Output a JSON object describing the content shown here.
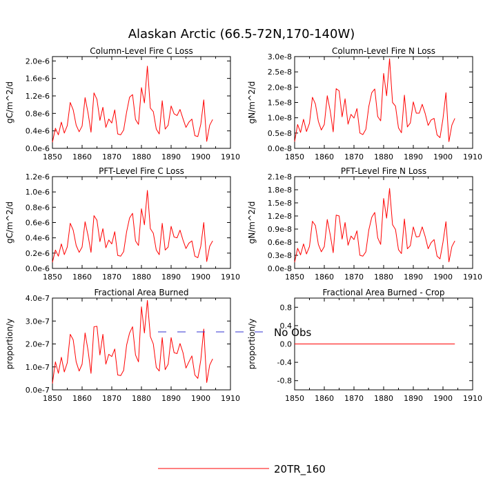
{
  "figure_title": "Alaskan Arctic (66.5-72N,170-140W)",
  "legend": [
    {
      "label": "No Obs",
      "color": "#3030d0",
      "dashed": true
    },
    {
      "label": "20TR_160",
      "color": "#ff0000",
      "dashed": false
    }
  ],
  "chart_data": [
    {
      "type": "line",
      "title": "Column-Level Fire C Loss",
      "xlabel": "",
      "ylabel": "gC/m^2/d",
      "xlim": [
        1850,
        1910
      ],
      "ylim": [
        0.0,
        2.1e-06
      ],
      "xticks": [
        1850,
        1860,
        1870,
        1880,
        1890,
        1900,
        1910
      ],
      "xtick_labels": [
        "1850",
        "1860",
        "1870",
        "1880",
        "1890",
        "1900",
        "1910"
      ],
      "yticks": [
        0.0,
        4e-07,
        8e-07,
        1.2e-06,
        1.6e-06,
        2e-06
      ],
      "ytick_labels": [
        "0.0e-6",
        "0.4e-6",
        "0.8e-6",
        "1.2e-6",
        "1.6e-6",
        "2.0e-6"
      ],
      "x": [
        1850,
        1851,
        1852,
        1853,
        1854,
        1855,
        1856,
        1857,
        1858,
        1859,
        1860,
        1861,
        1862,
        1863,
        1864,
        1865,
        1866,
        1867,
        1868,
        1869,
        1870,
        1871,
        1872,
        1873,
        1874,
        1875,
        1876,
        1877,
        1878,
        1879,
        1880,
        1881,
        1882,
        1883,
        1884,
        1885,
        1886,
        1887,
        1888,
        1889,
        1890,
        1891,
        1892,
        1893,
        1894,
        1895,
        1896,
        1897,
        1898,
        1899,
        1900,
        1901,
        1902,
        1903,
        1904
      ],
      "series": [
        {
          "name": "20TR_160",
          "color": "#ff0000",
          "values": [
            0.14,
            0.46,
            0.31,
            0.6,
            0.35,
            0.52,
            1.05,
            0.88,
            0.53,
            0.38,
            0.51,
            1.16,
            0.81,
            0.37,
            1.27,
            1.12,
            0.64,
            0.94,
            0.48,
            0.67,
            0.58,
            0.88,
            0.33,
            0.31,
            0.42,
            0.83,
            1.17,
            1.23,
            0.66,
            0.55,
            1.39,
            1.04,
            1.88,
            0.92,
            0.84,
            0.44,
            0.33,
            1.09,
            0.44,
            0.53,
            0.97,
            0.79,
            0.75,
            0.89,
            0.68,
            0.48,
            0.6,
            0.67,
            0.29,
            0.27,
            0.55,
            1.11,
            0.16,
            0.53,
            0.66
          ],
          "scale": 1e-06
        }
      ]
    },
    {
      "type": "line",
      "title": "Column-Level Fire N Loss",
      "xlabel": "",
      "ylabel": "gN/m^2/d",
      "xlim": [
        1850,
        1910
      ],
      "ylim": [
        0.0,
        3e-08
      ],
      "xticks": [
        1850,
        1860,
        1870,
        1880,
        1890,
        1900,
        1910
      ],
      "xtick_labels": [
        "1850",
        "1860",
        "1870",
        "1880",
        "1890",
        "1900",
        "1910"
      ],
      "yticks": [
        0.0,
        5e-09,
        1e-08,
        1.5e-08,
        2e-08,
        2.5e-08,
        3e-08
      ],
      "ytick_labels": [
        "0.0e-8",
        "0.5e-8",
        "1.0e-8",
        "1.5e-8",
        "2.0e-8",
        "2.5e-8",
        "3.0e-8"
      ],
      "x": [
        1850,
        1851,
        1852,
        1853,
        1854,
        1855,
        1856,
        1857,
        1858,
        1859,
        1860,
        1861,
        1862,
        1863,
        1864,
        1865,
        1866,
        1867,
        1868,
        1869,
        1870,
        1871,
        1872,
        1873,
        1874,
        1875,
        1876,
        1877,
        1878,
        1879,
        1880,
        1881,
        1882,
        1883,
        1884,
        1885,
        1886,
        1887,
        1888,
        1889,
        1890,
        1891,
        1892,
        1893,
        1894,
        1895,
        1896,
        1897,
        1898,
        1899,
        1900,
        1901,
        1902,
        1903,
        1904
      ],
      "series": [
        {
          "name": "20TR_160",
          "color": "#ff0000",
          "values": [
            0.22,
            0.78,
            0.52,
            0.95,
            0.55,
            0.82,
            1.67,
            1.45,
            0.88,
            0.6,
            0.78,
            1.72,
            1.22,
            0.54,
            1.95,
            1.88,
            1.03,
            1.62,
            0.79,
            1.11,
            0.99,
            1.3,
            0.5,
            0.45,
            0.62,
            1.37,
            1.82,
            1.94,
            1.04,
            0.9,
            2.45,
            1.72,
            2.93,
            1.5,
            1.38,
            0.67,
            0.51,
            1.74,
            0.7,
            0.83,
            1.52,
            1.15,
            1.15,
            1.44,
            1.14,
            0.75,
            0.93,
            0.98,
            0.44,
            0.35,
            0.97,
            1.82,
            0.22,
            0.76,
            0.98
          ],
          "scale": 1e-08
        }
      ]
    },
    {
      "type": "line",
      "title": "PFT-Level Fire C Loss",
      "xlabel": "",
      "ylabel": "gC/m^2/d",
      "xlim": [
        1850,
        1910
      ],
      "ylim": [
        0.0,
        1.2e-06
      ],
      "xticks": [
        1850,
        1860,
        1870,
        1880,
        1890,
        1900,
        1910
      ],
      "xtick_labels": [
        "1850",
        "1860",
        "1870",
        "1880",
        "1890",
        "1900",
        "1910"
      ],
      "yticks": [
        0.0,
        2e-07,
        4e-07,
        6e-07,
        8e-07,
        1e-06,
        1.2e-06
      ],
      "ytick_labels": [
        "0.0e-6",
        "0.2e-6",
        "0.4e-6",
        "0.6e-6",
        "0.8e-6",
        "1.0e-6",
        "1.2e-6"
      ],
      "x": [
        1850,
        1851,
        1852,
        1853,
        1854,
        1855,
        1856,
        1857,
        1858,
        1859,
        1860,
        1861,
        1862,
        1863,
        1864,
        1865,
        1866,
        1867,
        1868,
        1869,
        1870,
        1871,
        1872,
        1873,
        1874,
        1875,
        1876,
        1877,
        1878,
        1879,
        1880,
        1881,
        1882,
        1883,
        1884,
        1885,
        1886,
        1887,
        1888,
        1889,
        1890,
        1891,
        1892,
        1893,
        1894,
        1895,
        1896,
        1897,
        1898,
        1899,
        1900,
        1901,
        1902,
        1903,
        1904
      ],
      "series": [
        {
          "name": "20TR_160",
          "color": "#ff0000",
          "values": [
            0.08,
            0.24,
            0.16,
            0.32,
            0.18,
            0.28,
            0.59,
            0.5,
            0.3,
            0.21,
            0.28,
            0.61,
            0.43,
            0.21,
            0.69,
            0.63,
            0.35,
            0.52,
            0.27,
            0.37,
            0.32,
            0.48,
            0.17,
            0.16,
            0.22,
            0.48,
            0.66,
            0.72,
            0.36,
            0.3,
            0.78,
            0.57,
            1.02,
            0.52,
            0.46,
            0.24,
            0.18,
            0.59,
            0.24,
            0.28,
            0.55,
            0.41,
            0.4,
            0.5,
            0.37,
            0.26,
            0.33,
            0.36,
            0.16,
            0.14,
            0.29,
            0.6,
            0.09,
            0.29,
            0.36
          ],
          "scale": 1e-06
        }
      ]
    },
    {
      "type": "line",
      "title": "PFT-Level Fire N Loss",
      "xlabel": "",
      "ylabel": "gN/m^2/d",
      "xlim": [
        1850,
        1910
      ],
      "ylim": [
        0.0,
        2.1e-08
      ],
      "xticks": [
        1850,
        1860,
        1870,
        1880,
        1890,
        1900,
        1910
      ],
      "xtick_labels": [
        "1850",
        "1860",
        "1870",
        "1880",
        "1890",
        "1900",
        "1910"
      ],
      "yticks": [
        0.0,
        3e-09,
        6e-09,
        9e-09,
        1.2e-08,
        1.5e-08,
        1.8e-08,
        2.1e-08
      ],
      "ytick_labels": [
        "0.0e-8",
        "0.3e-8",
        "0.6e-8",
        "0.9e-8",
        "1.2e-8",
        "1.5e-8",
        "1.8e-8",
        "2.1e-8"
      ],
      "x": [
        1850,
        1851,
        1852,
        1853,
        1854,
        1855,
        1856,
        1857,
        1858,
        1859,
        1860,
        1861,
        1862,
        1863,
        1864,
        1865,
        1866,
        1867,
        1868,
        1869,
        1870,
        1871,
        1872,
        1873,
        1874,
        1875,
        1876,
        1877,
        1878,
        1879,
        1880,
        1881,
        1882,
        1883,
        1884,
        1885,
        1886,
        1887,
        1888,
        1889,
        1890,
        1891,
        1892,
        1893,
        1894,
        1895,
        1896,
        1897,
        1898,
        1899,
        1900,
        1901,
        1902,
        1903,
        1904
      ],
      "series": [
        {
          "name": "20TR_160",
          "color": "#ff0000",
          "values": [
            0.14,
            0.46,
            0.31,
            0.56,
            0.33,
            0.5,
            1.08,
            0.98,
            0.55,
            0.38,
            0.5,
            1.12,
            0.77,
            0.36,
            1.22,
            1.2,
            0.67,
            1.05,
            0.53,
            0.74,
            0.66,
            0.86,
            0.3,
            0.28,
            0.38,
            0.88,
            1.17,
            1.28,
            0.7,
            0.55,
            1.6,
            1.15,
            1.83,
            1.0,
            0.89,
            0.43,
            0.34,
            1.13,
            0.45,
            0.52,
            0.95,
            0.72,
            0.73,
            0.95,
            0.73,
            0.45,
            0.59,
            0.66,
            0.28,
            0.22,
            0.6,
            1.07,
            0.15,
            0.5,
            0.63
          ],
          "scale": 1e-08
        }
      ]
    },
    {
      "type": "line",
      "title": "Fractional Area Burned",
      "xlabel": "",
      "ylabel": "proportion/y",
      "xlim": [
        1850,
        1910
      ],
      "ylim": [
        0.0,
        4e-07
      ],
      "xticks": [
        1850,
        1860,
        1870,
        1880,
        1890,
        1900,
        1910
      ],
      "xtick_labels": [
        "1850",
        "1860",
        "1870",
        "1880",
        "1890",
        "1900",
        "1910"
      ],
      "yticks": [
        0.0,
        1e-07,
        2e-07,
        3e-07,
        4e-07
      ],
      "ytick_labels": [
        "0.0e-7",
        "1.0e-7",
        "2.0e-7",
        "3.0e-7",
        "4.0e-7"
      ],
      "x": [
        1850,
        1851,
        1852,
        1853,
        1854,
        1855,
        1856,
        1857,
        1858,
        1859,
        1860,
        1861,
        1862,
        1863,
        1864,
        1865,
        1866,
        1867,
        1868,
        1869,
        1870,
        1871,
        1872,
        1873,
        1874,
        1875,
        1876,
        1877,
        1878,
        1879,
        1880,
        1881,
        1882,
        1883,
        1884,
        1885,
        1886,
        1887,
        1888,
        1889,
        1890,
        1891,
        1892,
        1893,
        1894,
        1895,
        1896,
        1897,
        1898,
        1899,
        1900,
        1901,
        1902,
        1903,
        1904
      ],
      "series": [
        {
          "name": "20TR_160",
          "color": "#ff0000",
          "values": [
            0.28,
            1.22,
            0.72,
            1.42,
            0.78,
            1.18,
            2.42,
            2.18,
            1.22,
            0.82,
            1.12,
            2.48,
            1.72,
            0.72,
            2.75,
            2.77,
            1.52,
            2.42,
            1.12,
            1.55,
            1.45,
            1.78,
            0.65,
            0.62,
            0.85,
            1.95,
            2.48,
            2.75,
            1.52,
            1.22,
            3.62,
            2.48,
            3.9,
            2.32,
            2.0,
            0.98,
            0.82,
            2.28,
            0.88,
            1.12,
            2.28,
            1.62,
            1.58,
            2.02,
            1.62,
            0.95,
            1.22,
            1.48,
            0.65,
            0.5,
            1.3,
            2.65,
            0.32,
            1.08,
            1.35
          ],
          "scale": 1e-07
        }
      ]
    },
    {
      "type": "line",
      "title": "Fractional Area Burned - Crop",
      "xlabel": "",
      "ylabel": "proportion/y",
      "xlim": [
        1850,
        1910
      ],
      "ylim": [
        -1.0,
        1.0
      ],
      "xticks": [
        1850,
        1860,
        1870,
        1880,
        1890,
        1900,
        1910
      ],
      "xtick_labels": [
        "1850",
        "1860",
        "1870",
        "1880",
        "1890",
        "1900",
        "1910"
      ],
      "yticks": [
        -0.8,
        -0.4,
        0.0,
        0.4,
        0.8
      ],
      "ytick_labels": [
        "-0.8",
        "-0.4",
        "0.0",
        "0.4",
        "0.8"
      ],
      "x": [
        1850,
        1851,
        1852,
        1853,
        1854,
        1855,
        1856,
        1857,
        1858,
        1859,
        1860,
        1861,
        1862,
        1863,
        1864,
        1865,
        1866,
        1867,
        1868,
        1869,
        1870,
        1871,
        1872,
        1873,
        1874,
        1875,
        1876,
        1877,
        1878,
        1879,
        1880,
        1881,
        1882,
        1883,
        1884,
        1885,
        1886,
        1887,
        1888,
        1889,
        1890,
        1891,
        1892,
        1893,
        1894,
        1895,
        1896,
        1897,
        1898,
        1899,
        1900,
        1901,
        1902,
        1903,
        1904
      ],
      "series": [
        {
          "name": "20TR_160",
          "color": "#ff0000",
          "values": [
            0,
            0,
            0,
            0,
            0,
            0,
            0,
            0,
            0,
            0,
            0,
            0,
            0,
            0,
            0,
            0,
            0,
            0,
            0,
            0,
            0,
            0,
            0,
            0,
            0,
            0,
            0,
            0,
            0,
            0,
            0,
            0,
            0,
            0,
            0,
            0,
            0,
            0,
            0,
            0,
            0,
            0,
            0,
            0,
            0,
            0,
            0,
            0,
            0,
            0,
            0,
            0,
            0,
            0,
            0
          ],
          "scale": 1
        }
      ]
    }
  ]
}
